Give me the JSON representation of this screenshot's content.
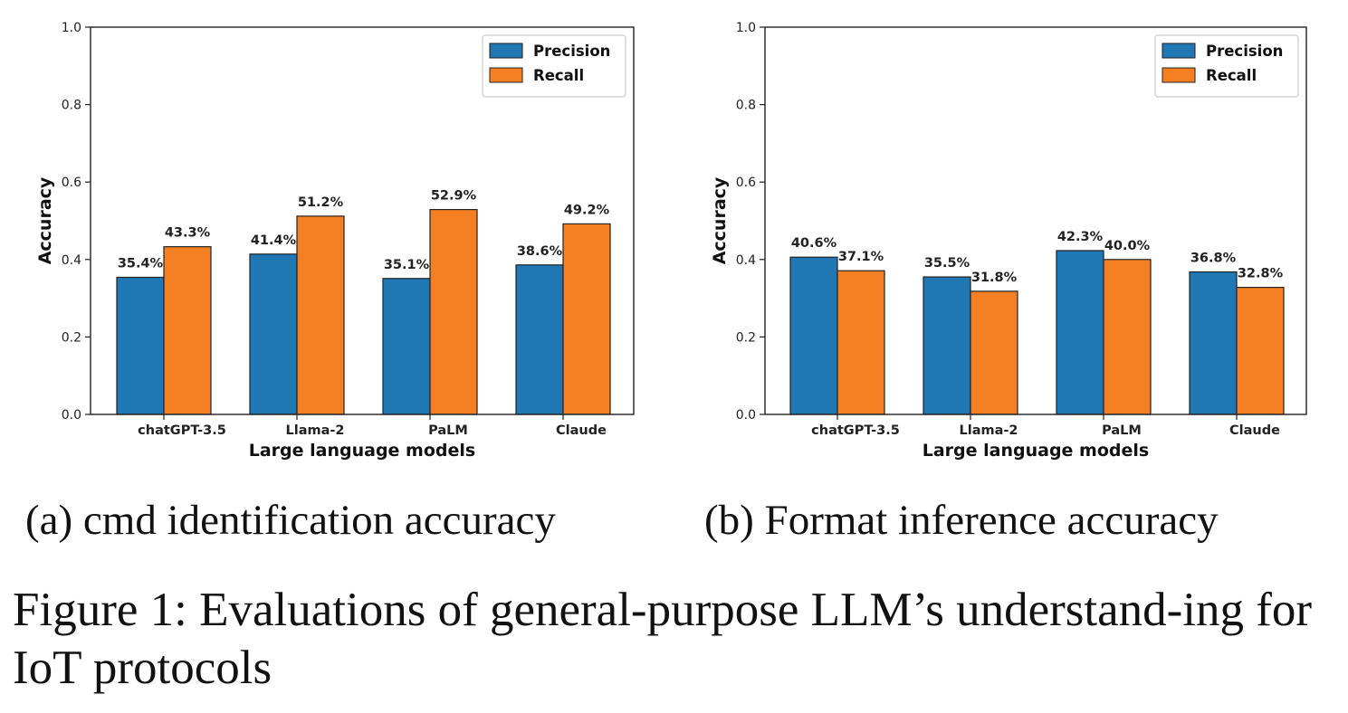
{
  "chart_data": [
    {
      "type": "bar",
      "subcaption": "(a) cmd identification accuracy",
      "xlabel": "Large language models",
      "ylabel": "Accuracy",
      "ylim": [
        0,
        1.0
      ],
      "yticks": [
        "0.0",
        "0.2",
        "0.4",
        "0.6",
        "0.8",
        "1.0"
      ],
      "categories": [
        "chatGPT-3.5",
        "Llama-2",
        "PaLM",
        "Claude"
      ],
      "legend_position": "top-right",
      "grid": false,
      "series": [
        {
          "name": "Precision",
          "color": "#1f77b4",
          "values": [
            0.354,
            0.414,
            0.351,
            0.386
          ],
          "labels": [
            "35.4%",
            "41.4%",
            "35.1%",
            "38.6%"
          ]
        },
        {
          "name": "Recall",
          "color": "#f58024",
          "values": [
            0.433,
            0.512,
            0.529,
            0.492
          ],
          "labels": [
            "43.3%",
            "51.2%",
            "52.9%",
            "49.2%"
          ]
        }
      ]
    },
    {
      "type": "bar",
      "subcaption": "(b) Format inference accuracy",
      "xlabel": "Large language models",
      "ylabel": "Accuracy",
      "ylim": [
        0,
        1.0
      ],
      "yticks": [
        "0.0",
        "0.2",
        "0.4",
        "0.6",
        "0.8",
        "1.0"
      ],
      "categories": [
        "chatGPT-3.5",
        "Llama-2",
        "PaLM",
        "Claude"
      ],
      "legend_position": "top-right",
      "grid": false,
      "series": [
        {
          "name": "Precision",
          "color": "#1f77b4",
          "values": [
            0.406,
            0.355,
            0.423,
            0.368
          ],
          "labels": [
            "40.6%",
            "35.5%",
            "42.3%",
            "36.8%"
          ]
        },
        {
          "name": "Recall",
          "color": "#f58024",
          "values": [
            0.371,
            0.318,
            0.4,
            0.328
          ],
          "labels": [
            "37.1%",
            "31.8%",
            "40.0%",
            "32.8%"
          ]
        }
      ]
    }
  ],
  "figure_caption": "Figure 1: Evaluations of general-purpose LLM’s understand-ing for IoT protocols"
}
